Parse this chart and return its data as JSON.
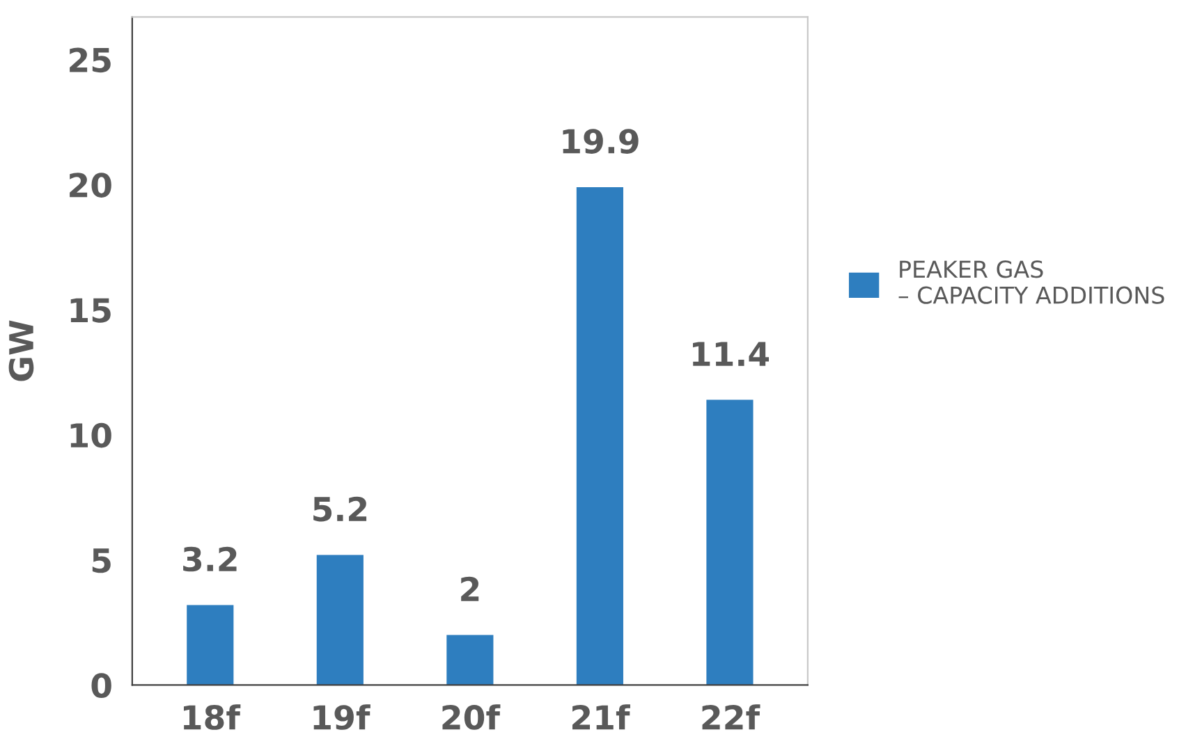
{
  "chart_data": {
    "type": "bar",
    "ylabel": "GW",
    "categories": [
      "18f",
      "19f",
      "20f",
      "21f",
      "22f"
    ],
    "series": [
      {
        "name": "PEAKER GAS\n– CAPACITY ADDITIONS",
        "color": "#2e7ebf",
        "values": [
          3.2,
          5.2,
          2,
          19.9,
          11.4
        ]
      }
    ],
    "ylim": [
      0,
      26.7
    ],
    "yticks": [
      0,
      5,
      10,
      15,
      20,
      25
    ],
    "data_labels": true,
    "grid": false,
    "legend": "right"
  }
}
